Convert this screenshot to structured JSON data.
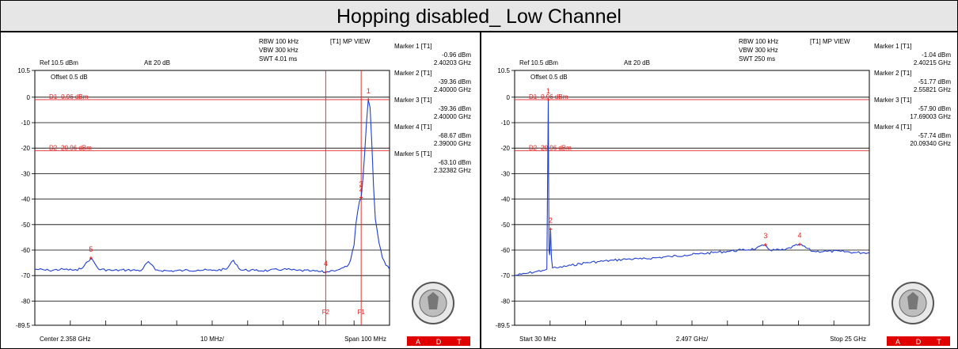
{
  "title": "Hopping disabled_ Low Channel",
  "colors": {
    "trace": "#1f3fd0",
    "marker_red": "#e02020",
    "grid": "#000000",
    "adt_red": "#e00000"
  },
  "icons": {
    "seal": "bureau-veritas-seal-icon"
  },
  "chart_data": [
    {
      "type": "line",
      "panel": "left",
      "header": {
        "ref": "Ref 10.5 dBm",
        "att": "Att  20 dB",
        "rbw": "RBW 100 kHz",
        "vbw": "VBW 300 kHz",
        "swt": "SWT 4.01 ms",
        "view": "[T1] MP VIEW",
        "offset": "Offset 0.5 dB"
      },
      "footer": {
        "left": "Center 2.358 GHz",
        "mid": "10 MHz/",
        "right": "Span 100 MHz"
      },
      "y_ticks": [
        "10.5",
        "0",
        "-10",
        "-20",
        "-30",
        "-40",
        "-50",
        "-60",
        "-70",
        "-80",
        "-89.5"
      ],
      "ylim": [
        -89.5,
        10.5
      ],
      "xlim": [
        2308,
        2408
      ],
      "grid": true,
      "lines": [
        {
          "label": "D1 -0.96 dBm",
          "value": -0.96,
          "kind": "h"
        },
        {
          "label": "D2 -20.96 dBm",
          "value": -20.96,
          "kind": "h"
        },
        {
          "label": "F2",
          "value": 2390.0,
          "kind": "v"
        },
        {
          "label": "F1",
          "value": 2400.0,
          "kind": "v"
        }
      ],
      "markers": [
        {
          "num": "1",
          "name": "Marker 1 [T1]",
          "level": "-0.96 dBm",
          "freq": "2.40203 GHz",
          "x": 2402.03,
          "y": -0.96
        },
        {
          "num": "2",
          "name": "Marker 2 [T1]",
          "level": "-39.36 dBm",
          "freq": "2.40000 GHz",
          "x": 2400.0,
          "y": -39.36
        },
        {
          "num": "3",
          "name": "Marker 3 [T1]",
          "level": "-39.36 dBm",
          "freq": "2.40000 GHz",
          "x": 2400.0,
          "y": -39.36
        },
        {
          "num": "4",
          "name": "Marker 4 [T1]",
          "level": "-68.67 dBm",
          "freq": "2.39000 GHz",
          "x": 2390.0,
          "y": -68.67
        },
        {
          "num": "5",
          "name": "Marker 5 [T1]",
          "level": "-63.10 dBm",
          "freq": "2.32382 GHz",
          "x": 2323.82,
          "y": -63.1
        }
      ],
      "trace": {
        "x": [
          2308,
          2312,
          2316,
          2320,
          2322,
          2323.8,
          2326,
          2330,
          2334,
          2338,
          2340,
          2342,
          2346,
          2350,
          2354,
          2358,
          2362,
          2364,
          2366,
          2370,
          2374,
          2378,
          2382,
          2386,
          2390,
          2392,
          2394,
          2396,
          2397,
          2398,
          2398.5,
          2399,
          2399.5,
          2400,
          2400.5,
          2401,
          2401.5,
          2402,
          2402.5,
          2403,
          2403.5,
          2404,
          2405,
          2406,
          2407,
          2408
        ],
        "y": [
          -67.5,
          -68,
          -67.5,
          -68,
          -66,
          -63.1,
          -67.5,
          -68,
          -67.8,
          -68,
          -64.5,
          -67.8,
          -68.2,
          -68,
          -67.8,
          -68,
          -67.5,
          -64,
          -67.8,
          -68,
          -68,
          -67.5,
          -68,
          -68.2,
          -68.7,
          -68,
          -67.5,
          -66.5,
          -64,
          -58,
          -50,
          -45,
          -41,
          -39.4,
          -32,
          -22,
          -10,
          -1,
          -4,
          -18,
          -35,
          -48,
          -57,
          -63,
          -66,
          -67.5
        ]
      }
    },
    {
      "type": "line",
      "panel": "right",
      "header": {
        "ref": "Ref 10.5 dBm",
        "att": "Att  20 dB",
        "rbw": "RBW 100 kHz",
        "vbw": "VBW 300 kHz",
        "swt": "SWT 250 ms",
        "view": "[T1] MP VIEW",
        "offset": "Offset 0.5 dB"
      },
      "footer": {
        "left": "Start 30 MHz",
        "mid": "2.497 GHz/",
        "right": "Stop 25 GHz"
      },
      "y_ticks": [
        "10.5",
        "0",
        "-10",
        "-20",
        "-30",
        "-40",
        "-50",
        "-60",
        "-70",
        "-80",
        "-89.5"
      ],
      "ylim": [
        -89.5,
        10.5
      ],
      "xlim": [
        0.03,
        25.0
      ],
      "grid": true,
      "lines": [
        {
          "label": "D1 -0.96 dBm",
          "value": -0.96,
          "kind": "h"
        },
        {
          "label": "D2 -20.96 dBm",
          "value": -20.96,
          "kind": "h"
        }
      ],
      "markers": [
        {
          "num": "1",
          "name": "Marker 1 [T1]",
          "level": "-1.04 dBm",
          "freq": "2.40215 GHz",
          "x": 2.40215,
          "y": -1.04
        },
        {
          "num": "2",
          "name": "Marker 2 [T1]",
          "level": "-51.77 dBm",
          "freq": "2.55821 GHz",
          "x": 2.55821,
          "y": -51.77
        },
        {
          "num": "3",
          "name": "Marker 3 [T1]",
          "level": "-57.90 dBm",
          "freq": "17.69003 GHz",
          "x": 17.69003,
          "y": -57.9
        },
        {
          "num": "4",
          "name": "Marker 4 [T1]",
          "level": "-57.74 dBm",
          "freq": "20.09340 GHz",
          "x": 20.0934,
          "y": -57.74
        }
      ],
      "trace": {
        "x": [
          0.03,
          0.5,
          1.0,
          1.5,
          2.0,
          2.3,
          2.4,
          2.45,
          2.5,
          2.56,
          2.62,
          2.7,
          3.0,
          4.0,
          5.0,
          6.0,
          7.0,
          8.0,
          9.0,
          10.0,
          11.0,
          12.0,
          13.0,
          14.0,
          15.0,
          16.0,
          17.0,
          17.69,
          18.0,
          19.0,
          20.09,
          21.0,
          22.0,
          23.0,
          24.0,
          25.0
        ],
        "y": [
          -70,
          -69.5,
          -69,
          -68.5,
          -68,
          -67.5,
          -1.04,
          -60,
          -62,
          -51.77,
          -63,
          -67,
          -67,
          -66,
          -65,
          -64.5,
          -64,
          -63.5,
          -63.5,
          -63,
          -62.5,
          -62,
          -61.5,
          -61,
          -60.5,
          -60,
          -59.5,
          -57.9,
          -60,
          -60,
          -57.74,
          -60.5,
          -60.5,
          -60.5,
          -61,
          -61
        ]
      }
    }
  ],
  "adt": {
    "letters": [
      "A",
      "D",
      "T"
    ]
  }
}
